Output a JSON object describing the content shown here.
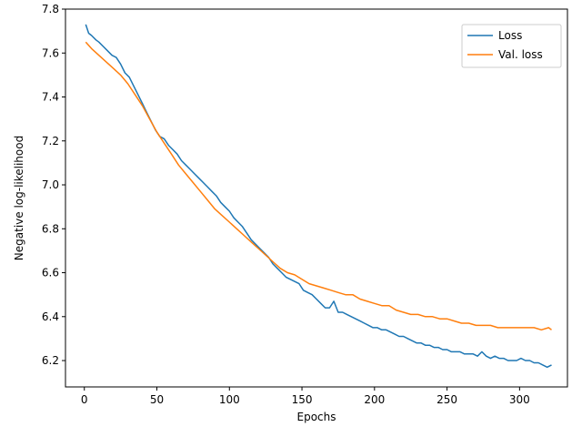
{
  "chart_data": {
    "type": "line",
    "title": "",
    "xlabel": "Epochs",
    "ylabel": "Negative log-likelihood",
    "xlim": [
      -13,
      333
    ],
    "ylim": [
      6.08,
      7.8
    ],
    "xticks": [
      0,
      50,
      100,
      150,
      200,
      250,
      300
    ],
    "yticks": [
      6.2,
      6.4,
      6.6,
      6.8,
      7.0,
      7.2,
      7.4,
      7.6,
      7.8
    ],
    "grid": false,
    "legend_position": "top-right",
    "series": [
      {
        "name": "Loss",
        "color": "#1f77b4",
        "points": [
          [
            1,
            7.73
          ],
          [
            3,
            7.69
          ],
          [
            5,
            7.68
          ],
          [
            8,
            7.66
          ],
          [
            10,
            7.65
          ],
          [
            13,
            7.63
          ],
          [
            16,
            7.61
          ],
          [
            19,
            7.59
          ],
          [
            22,
            7.58
          ],
          [
            25,
            7.55
          ],
          [
            28,
            7.51
          ],
          [
            31,
            7.49
          ],
          [
            34,
            7.45
          ],
          [
            37,
            7.41
          ],
          [
            40,
            7.37
          ],
          [
            43,
            7.33
          ],
          [
            46,
            7.29
          ],
          [
            49,
            7.25
          ],
          [
            52,
            7.22
          ],
          [
            55,
            7.21
          ],
          [
            58,
            7.18
          ],
          [
            61,
            7.16
          ],
          [
            64,
            7.14
          ],
          [
            67,
            7.11
          ],
          [
            70,
            7.09
          ],
          [
            73,
            7.07
          ],
          [
            76,
            7.05
          ],
          [
            79,
            7.03
          ],
          [
            82,
            7.01
          ],
          [
            85,
            6.99
          ],
          [
            88,
            6.97
          ],
          [
            91,
            6.95
          ],
          [
            94,
            6.92
          ],
          [
            97,
            6.9
          ],
          [
            100,
            6.88
          ],
          [
            103,
            6.85
          ],
          [
            106,
            6.83
          ],
          [
            109,
            6.81
          ],
          [
            112,
            6.78
          ],
          [
            115,
            6.75
          ],
          [
            118,
            6.73
          ],
          [
            121,
            6.71
          ],
          [
            124,
            6.69
          ],
          [
            127,
            6.67
          ],
          [
            130,
            6.64
          ],
          [
            133,
            6.62
          ],
          [
            136,
            6.6
          ],
          [
            139,
            6.58
          ],
          [
            142,
            6.57
          ],
          [
            145,
            6.56
          ],
          [
            148,
            6.55
          ],
          [
            151,
            6.52
          ],
          [
            154,
            6.51
          ],
          [
            157,
            6.5
          ],
          [
            160,
            6.48
          ],
          [
            163,
            6.46
          ],
          [
            166,
            6.44
          ],
          [
            169,
            6.44
          ],
          [
            172,
            6.47
          ],
          [
            175,
            6.42
          ],
          [
            178,
            6.42
          ],
          [
            181,
            6.41
          ],
          [
            184,
            6.4
          ],
          [
            187,
            6.39
          ],
          [
            190,
            6.38
          ],
          [
            193,
            6.37
          ],
          [
            196,
            6.36
          ],
          [
            199,
            6.35
          ],
          [
            202,
            6.35
          ],
          [
            205,
            6.34
          ],
          [
            208,
            6.34
          ],
          [
            211,
            6.33
          ],
          [
            214,
            6.32
          ],
          [
            217,
            6.31
          ],
          [
            220,
            6.31
          ],
          [
            223,
            6.3
          ],
          [
            226,
            6.29
          ],
          [
            229,
            6.28
          ],
          [
            232,
            6.28
          ],
          [
            235,
            6.27
          ],
          [
            238,
            6.27
          ],
          [
            241,
            6.26
          ],
          [
            244,
            6.26
          ],
          [
            247,
            6.25
          ],
          [
            250,
            6.25
          ],
          [
            253,
            6.24
          ],
          [
            256,
            6.24
          ],
          [
            259,
            6.24
          ],
          [
            262,
            6.23
          ],
          [
            265,
            6.23
          ],
          [
            268,
            6.23
          ],
          [
            271,
            6.22
          ],
          [
            274,
            6.24
          ],
          [
            277,
            6.22
          ],
          [
            280,
            6.21
          ],
          [
            283,
            6.22
          ],
          [
            286,
            6.21
          ],
          [
            289,
            6.21
          ],
          [
            292,
            6.2
          ],
          [
            295,
            6.2
          ],
          [
            298,
            6.2
          ],
          [
            301,
            6.21
          ],
          [
            304,
            6.2
          ],
          [
            307,
            6.2
          ],
          [
            310,
            6.19
          ],
          [
            313,
            6.19
          ],
          [
            316,
            6.18
          ],
          [
            319,
            6.17
          ],
          [
            322,
            6.18
          ]
        ]
      },
      {
        "name": "Val. loss",
        "color": "#ff7f0e",
        "points": [
          [
            1,
            7.65
          ],
          [
            5,
            7.62
          ],
          [
            10,
            7.59
          ],
          [
            15,
            7.56
          ],
          [
            20,
            7.53
          ],
          [
            25,
            7.5
          ],
          [
            30,
            7.46
          ],
          [
            35,
            7.41
          ],
          [
            40,
            7.36
          ],
          [
            45,
            7.3
          ],
          [
            50,
            7.24
          ],
          [
            55,
            7.19
          ],
          [
            60,
            7.14
          ],
          [
            65,
            7.09
          ],
          [
            70,
            7.05
          ],
          [
            75,
            7.01
          ],
          [
            80,
            6.97
          ],
          [
            85,
            6.93
          ],
          [
            90,
            6.89
          ],
          [
            95,
            6.86
          ],
          [
            100,
            6.83
          ],
          [
            105,
            6.8
          ],
          [
            110,
            6.77
          ],
          [
            115,
            6.74
          ],
          [
            120,
            6.71
          ],
          [
            125,
            6.68
          ],
          [
            130,
            6.65
          ],
          [
            135,
            6.62
          ],
          [
            140,
            6.6
          ],
          [
            145,
            6.59
          ],
          [
            150,
            6.57
          ],
          [
            155,
            6.55
          ],
          [
            160,
            6.54
          ],
          [
            165,
            6.53
          ],
          [
            170,
            6.52
          ],
          [
            175,
            6.51
          ],
          [
            180,
            6.5
          ],
          [
            185,
            6.5
          ],
          [
            190,
            6.48
          ],
          [
            195,
            6.47
          ],
          [
            200,
            6.46
          ],
          [
            205,
            6.45
          ],
          [
            210,
            6.45
          ],
          [
            215,
            6.43
          ],
          [
            220,
            6.42
          ],
          [
            225,
            6.41
          ],
          [
            230,
            6.41
          ],
          [
            235,
            6.4
          ],
          [
            240,
            6.4
          ],
          [
            245,
            6.39
          ],
          [
            250,
            6.39
          ],
          [
            255,
            6.38
          ],
          [
            260,
            6.37
          ],
          [
            265,
            6.37
          ],
          [
            270,
            6.36
          ],
          [
            275,
            6.36
          ],
          [
            280,
            6.36
          ],
          [
            285,
            6.35
          ],
          [
            290,
            6.35
          ],
          [
            295,
            6.35
          ],
          [
            300,
            6.35
          ],
          [
            305,
            6.35
          ],
          [
            310,
            6.35
          ],
          [
            315,
            6.34
          ],
          [
            320,
            6.35
          ],
          [
            322,
            6.34
          ]
        ]
      }
    ]
  }
}
